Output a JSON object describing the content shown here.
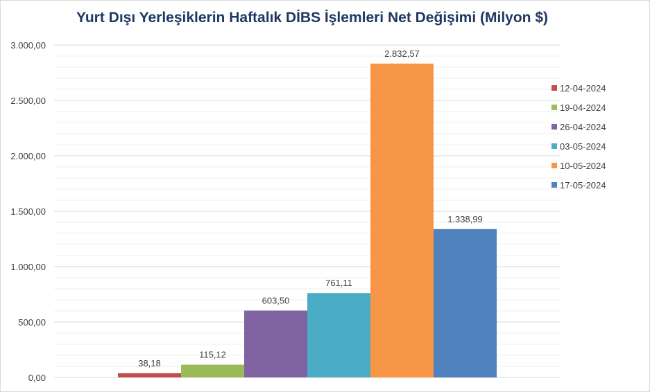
{
  "chart_data": {
    "type": "bar",
    "title": "Yurt Dışı Yerleşiklerin Haftalık DİBS İşlemleri Net Değişimi (Milyon $)",
    "ylim": [
      0,
      3000
    ],
    "yticks": [
      "0,00",
      "500,00",
      "1.000,00",
      "1.500,00",
      "2.000,00",
      "2.500,00",
      "3.000,00"
    ],
    "grid": true,
    "legend_position": "right",
    "series": [
      {
        "name": "12-04-2024",
        "value": 38.18,
        "label": "38,18",
        "color": "#c0504d"
      },
      {
        "name": "19-04-2024",
        "value": 115.12,
        "label": "115,12",
        "color": "#9bbb59"
      },
      {
        "name": "26-04-2024",
        "value": 603.5,
        "label": "603,50",
        "color": "#8064a2"
      },
      {
        "name": "03-05-2024",
        "value": 761.11,
        "label": "761,11",
        "color": "#4bacc6"
      },
      {
        "name": "10-05-2024",
        "value": 2832.57,
        "label": "2.832,57",
        "color": "#f79646"
      },
      {
        "name": "17-05-2024",
        "value": 1338.99,
        "label": "1.338,99",
        "color": "#4f81bd"
      }
    ]
  }
}
